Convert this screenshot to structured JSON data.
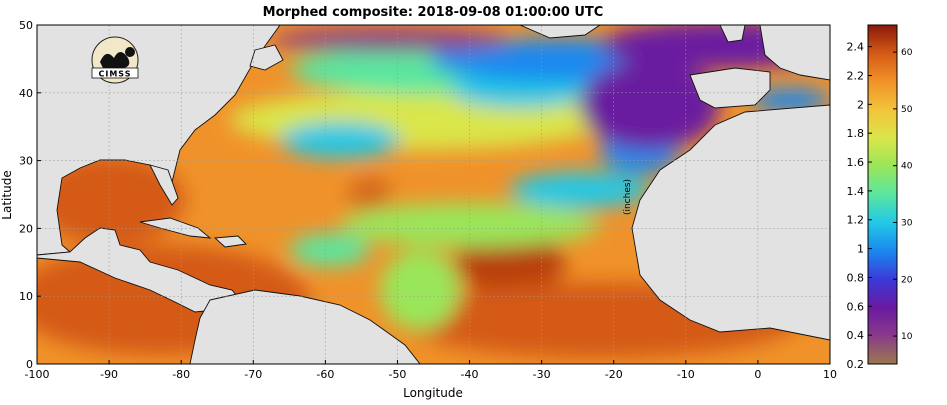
{
  "title": "Morphed composite: 2018-09-08 01:00:00 UTC",
  "xlabel": "Longitude",
  "ylabel": "Latitude",
  "x_ticks": [
    "-100",
    "-90",
    "-80",
    "-70",
    "-60",
    "-50",
    "-40",
    "-30",
    "-20",
    "-10",
    "0",
    "10"
  ],
  "y_ticks": [
    "0",
    "10",
    "20",
    "30",
    "40",
    "50"
  ],
  "extent": {
    "lon": [
      -100,
      10
    ],
    "lat": [
      0,
      50
    ]
  },
  "logo_text": "CIMSS",
  "colorbar": {
    "unit_label": "(inches)",
    "left_ticks": [
      "0.2",
      "0.4",
      "0.6",
      "0.8",
      "1",
      "1.2",
      "1.4",
      "1.6",
      "1.8",
      "2",
      "2.2",
      "2.4"
    ],
    "right_ticks": [
      "10",
      "20",
      "30",
      "40",
      "50",
      "60"
    ],
    "left_range": [
      0.2,
      2.55
    ],
    "right_range": [
      5.08,
      64.77
    ],
    "colors": [
      "#9a7a4e",
      "#8a3a8a",
      "#6a1aa0",
      "#3a3ad8",
      "#1a88ee",
      "#22c8e6",
      "#5ae6a0",
      "#9ae65a",
      "#dae64a",
      "#f2c43a",
      "#f0922a",
      "#d45a16",
      "#8a1a0a"
    ]
  },
  "colors": {
    "land": "#e2e2e2",
    "coast": "#111111",
    "grid": "#9a9a9a"
  }
}
